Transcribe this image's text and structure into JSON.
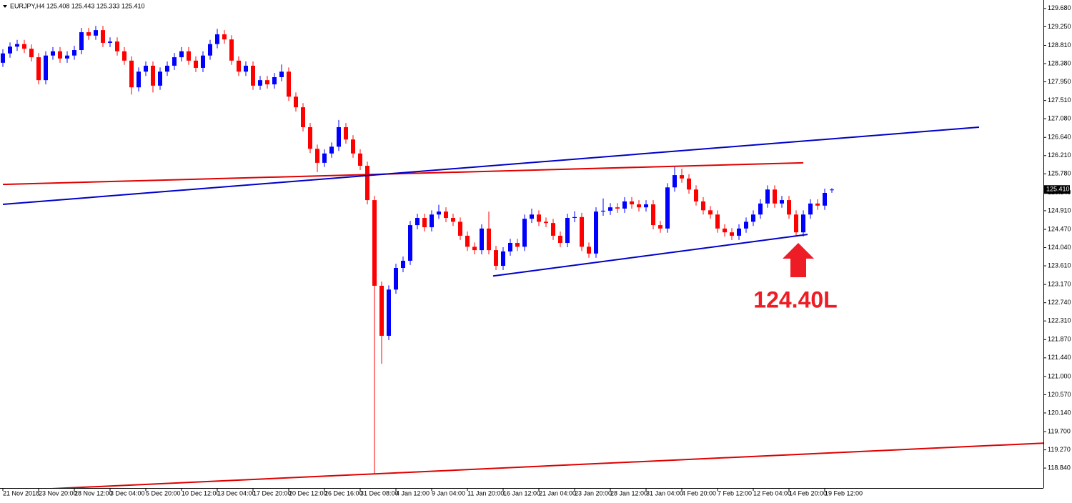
{
  "chart_data": {
    "type": "candlestick",
    "title": "EURJPY,H4  125.408 125.443 125.333 125.410",
    "up_color": "#0000ff",
    "down_color": "#ff0000",
    "ylim": [
      118.37,
      129.88
    ],
    "yticks": [
      {
        "value": 129.68,
        "label": "129.680"
      },
      {
        "value": 129.25,
        "label": "129.250"
      },
      {
        "value": 128.81,
        "label": "128.810"
      },
      {
        "value": 128.38,
        "label": "128.380"
      },
      {
        "value": 127.95,
        "label": "127.950"
      },
      {
        "value": 127.51,
        "label": "127.510"
      },
      {
        "value": 127.08,
        "label": "127.080"
      },
      {
        "value": 126.64,
        "label": "126.640"
      },
      {
        "value": 126.21,
        "label": "126.210"
      },
      {
        "value": 125.78,
        "label": "125.780"
      },
      {
        "value": 125.34,
        "label": "125.340"
      },
      {
        "value": 124.91,
        "label": "124.910"
      },
      {
        "value": 124.47,
        "label": "124.470"
      },
      {
        "value": 124.04,
        "label": "124.040"
      },
      {
        "value": 123.61,
        "label": "123.610"
      },
      {
        "value": 123.17,
        "label": "123.170"
      },
      {
        "value": 122.74,
        "label": "122.740"
      },
      {
        "value": 122.31,
        "label": "122.310"
      },
      {
        "value": 121.87,
        "label": "121.870"
      },
      {
        "value": 121.44,
        "label": "121.440"
      },
      {
        "value": 121.0,
        "label": "121.000"
      },
      {
        "value": 120.57,
        "label": "120.570"
      },
      {
        "value": 120.14,
        "label": "120.140"
      },
      {
        "value": 119.7,
        "label": "119.700"
      },
      {
        "value": 119.27,
        "label": "119.270"
      },
      {
        "value": 118.84,
        "label": "118.840"
      }
    ],
    "last_price": {
      "value": 125.41,
      "label": "125.410"
    },
    "categories": [
      "21 Nov 2018",
      null,
      null,
      null,
      null,
      "23 Nov 20:00",
      null,
      null,
      null,
      null,
      "28 Nov 12:00",
      null,
      null,
      null,
      null,
      "3 Dec 04:00",
      null,
      null,
      null,
      null,
      "5 Dec 20:00",
      null,
      null,
      null,
      null,
      "10 Dec 12:00",
      null,
      null,
      null,
      null,
      "13 Dec 04:00",
      null,
      null,
      null,
      null,
      "17 Dec 20:00",
      null,
      null,
      null,
      null,
      "20 Dec 12:00",
      null,
      null,
      null,
      null,
      "26 Dec 16:00",
      null,
      null,
      null,
      null,
      "31 Dec 08:00",
      null,
      null,
      null,
      null,
      "4 Jan 12:00",
      null,
      null,
      null,
      null,
      "9 Jan 04:00",
      null,
      null,
      null,
      null,
      "11 Jan 20:00",
      null,
      null,
      null,
      null,
      "16 Jan 12:00",
      null,
      null,
      null,
      null,
      "21 Jan 04:00",
      null,
      null,
      null,
      null,
      "23 Jan 20:00",
      null,
      null,
      null,
      null,
      "28 Jan 12:00",
      null,
      null,
      null,
      null,
      "31 Jan 04:00",
      null,
      null,
      null,
      null,
      "4 Feb 20:00",
      null,
      null,
      null,
      null,
      "7 Feb 12:00",
      null,
      null,
      null,
      null,
      "12 Feb 04:00",
      null,
      null,
      null,
      null,
      "14 Feb 20:00",
      null,
      null,
      null,
      null,
      "19 Feb 12:00",
      null
    ],
    "open": [
      128.4,
      128.62,
      128.78,
      128.84,
      128.73,
      128.53,
      127.99,
      128.57,
      128.67,
      128.5,
      128.57,
      128.7,
      129.12,
      129.04,
      129.17,
      128.87,
      128.9,
      128.67,
      128.45,
      127.82,
      128.19,
      128.33,
      127.86,
      128.19,
      128.33,
      128.53,
      128.67,
      128.45,
      128.28,
      128.57,
      128.84,
      129.07,
      128.95,
      128.45,
      128.19,
      128.33,
      127.86,
      127.99,
      127.89,
      128.06,
      128.19,
      127.6,
      127.35,
      126.88,
      126.37,
      126.04,
      126.26,
      126.42,
      126.88,
      126.59,
      126.26,
      125.97,
      125.16,
      123.14,
      121.96,
      123.05,
      123.56,
      123.73,
      124.57,
      124.74,
      124.52,
      124.82,
      124.89,
      124.74,
      124.65,
      124.32,
      124.06,
      123.98,
      124.49,
      123.98,
      123.61,
      123.95,
      124.15,
      124.06,
      124.72,
      124.82,
      124.65,
      124.62,
      124.32,
      124.15,
      124.74,
      124.76,
      124.06,
      123.9,
      124.89,
      124.91,
      124.99,
      124.96,
      125.13,
      125.06,
      124.99,
      125.06,
      124.57,
      124.49,
      125.46,
      125.75,
      125.67,
      125.41,
      125.13,
      124.92,
      124.82,
      124.49,
      124.4,
      124.32,
      124.49,
      124.65,
      124.82,
      125.08,
      125.41,
      125.08,
      125.16,
      124.82,
      124.4,
      124.82,
      125.08,
      125.03,
      125.408
    ],
    "high": [
      128.72,
      128.88,
      128.94,
      128.94,
      128.83,
      128.63,
      128.67,
      128.77,
      128.77,
      128.67,
      128.8,
      129.22,
      129.22,
      129.27,
      129.27,
      129.0,
      129.0,
      128.77,
      128.55,
      128.29,
      128.43,
      128.43,
      128.29,
      128.43,
      128.63,
      128.77,
      128.77,
      128.55,
      128.67,
      128.94,
      129.2,
      129.17,
      129.05,
      128.55,
      128.43,
      128.43,
      128.09,
      128.09,
      128.16,
      128.36,
      128.29,
      127.7,
      127.45,
      126.98,
      126.47,
      126.36,
      126.52,
      127.05,
      126.98,
      126.69,
      126.36,
      126.07,
      125.26,
      123.24,
      123.15,
      123.66,
      123.83,
      124.67,
      124.84,
      124.84,
      124.92,
      125.05,
      124.99,
      124.84,
      124.75,
      124.42,
      124.16,
      124.59,
      124.89,
      124.08,
      124.05,
      124.25,
      124.25,
      124.82,
      124.96,
      124.92,
      124.75,
      124.72,
      124.42,
      124.84,
      124.9,
      124.86,
      124.16,
      124.99,
      125.2,
      125.09,
      125.09,
      125.23,
      125.23,
      125.16,
      125.16,
      125.16,
      124.67,
      125.56,
      125.95,
      125.9,
      125.77,
      125.51,
      125.23,
      125.02,
      124.92,
      124.59,
      124.5,
      124.59,
      124.75,
      124.92,
      125.18,
      125.51,
      125.51,
      125.26,
      125.26,
      124.92,
      124.92,
      125.18,
      125.18,
      125.43,
      125.443
    ],
    "low": [
      128.3,
      128.52,
      128.68,
      128.63,
      128.43,
      127.89,
      127.89,
      128.47,
      128.4,
      128.4,
      128.47,
      128.6,
      128.94,
      128.94,
      128.77,
      128.77,
      128.57,
      128.35,
      127.65,
      127.72,
      128.09,
      127.7,
      127.76,
      128.09,
      128.23,
      128.43,
      128.35,
      128.18,
      128.18,
      128.47,
      128.74,
      128.85,
      128.35,
      128.09,
      128.09,
      127.76,
      127.76,
      127.79,
      127.79,
      127.96,
      127.5,
      127.25,
      126.78,
      126.27,
      125.82,
      125.94,
      126.16,
      126.32,
      126.49,
      126.16,
      125.87,
      125.06,
      118.7,
      121.3,
      121.86,
      122.95,
      123.46,
      123.63,
      124.47,
      124.42,
      124.42,
      124.72,
      124.64,
      124.55,
      124.22,
      123.96,
      123.88,
      123.88,
      123.88,
      123.51,
      123.51,
      123.85,
      123.96,
      123.96,
      124.62,
      124.55,
      124.52,
      124.22,
      124.05,
      124.05,
      124.64,
      123.96,
      123.8,
      123.8,
      124.79,
      124.81,
      124.86,
      124.86,
      124.96,
      124.89,
      124.89,
      124.47,
      124.39,
      124.39,
      125.36,
      125.57,
      125.31,
      125.03,
      124.82,
      124.72,
      124.39,
      124.3,
      124.22,
      124.22,
      124.39,
      124.55,
      124.72,
      124.98,
      124.98,
      124.98,
      124.72,
      124.3,
      124.3,
      124.72,
      124.93,
      124.93,
      125.333
    ],
    "close": [
      128.62,
      128.78,
      128.84,
      128.73,
      128.53,
      127.99,
      128.57,
      128.67,
      128.5,
      128.57,
      128.7,
      129.12,
      129.04,
      129.17,
      128.87,
      128.9,
      128.67,
      128.45,
      127.82,
      128.19,
      128.33,
      127.86,
      128.19,
      128.33,
      128.53,
      128.67,
      128.45,
      128.28,
      128.57,
      128.84,
      129.07,
      128.95,
      128.45,
      128.19,
      128.33,
      127.86,
      127.99,
      127.89,
      128.06,
      128.19,
      127.6,
      127.35,
      126.88,
      126.37,
      126.04,
      126.26,
      126.42,
      126.88,
      126.59,
      126.26,
      125.97,
      125.16,
      123.14,
      121.96,
      123.05,
      123.56,
      123.73,
      124.57,
      124.74,
      124.52,
      124.82,
      124.89,
      124.74,
      124.65,
      124.32,
      124.06,
      123.98,
      124.49,
      123.98,
      123.61,
      123.95,
      124.15,
      124.06,
      124.72,
      124.82,
      124.65,
      124.62,
      124.32,
      124.15,
      124.74,
      124.76,
      124.06,
      123.9,
      124.89,
      124.91,
      124.99,
      124.96,
      125.13,
      125.06,
      124.99,
      125.06,
      124.57,
      124.49,
      125.46,
      125.75,
      125.67,
      125.41,
      125.13,
      124.92,
      124.82,
      124.49,
      124.4,
      124.32,
      124.49,
      124.65,
      124.82,
      125.08,
      125.41,
      125.08,
      125.16,
      124.82,
      124.4,
      124.82,
      125.08,
      125.03,
      125.33,
      125.41
    ],
    "trendlines": [
      {
        "color": "#e00000",
        "x": [
          0,
          112
        ],
        "y": [
          125.53,
          126.04
        ]
      },
      {
        "color": "#0000c8",
        "x": [
          0,
          136.6
        ],
        "y": [
          125.06,
          126.88
        ]
      },
      {
        "color": "#0000c8",
        "x": [
          68.6,
          112.6
        ],
        "y": [
          123.37,
          124.35
        ]
      },
      {
        "color": "#e00000",
        "x": [
          6.4,
          145.8
        ],
        "y": [
          118.35,
          119.43
        ]
      }
    ],
    "annotation": {
      "text": "124.40L",
      "color": "#ee1c25"
    }
  }
}
